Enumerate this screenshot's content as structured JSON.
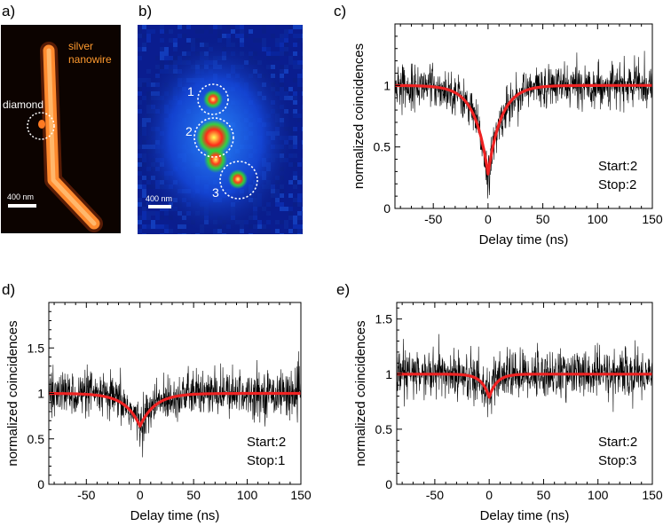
{
  "panel_labels": [
    "a)",
    "b)",
    "c)",
    "d)",
    "e)"
  ],
  "image_a": {
    "nanowire_label_line1": "silver",
    "nanowire_label_line2": "nanowire",
    "diamond_label": "diamond",
    "scale_bar_label": "400 nm"
  },
  "image_b": {
    "emitter_labels": [
      "1",
      "2",
      "3"
    ],
    "scale_bar_label": "400 nm"
  },
  "colors": {
    "trace": "#000000",
    "fit": "#ee2222",
    "nanowire": "#ff9933",
    "annotation_orange": "#ff9a2e"
  },
  "chart_data": [
    {
      "panel": "c)",
      "type": "line",
      "xlabel": "Delay time (ns)",
      "ylabel": "normalized coincidences",
      "xlim": [
        -85,
        150
      ],
      "ylim": [
        0,
        1.5
      ],
      "xticks": [
        -50,
        0,
        50,
        100,
        150
      ],
      "yticks": [
        0,
        0.5,
        1
      ],
      "ytick_labels": [
        "0",
        "0.5",
        "1"
      ],
      "series": [
        {
          "name": "coincidence data",
          "kind": "noisy-histogram",
          "baseline": 1.0,
          "dip_depth": 0.75,
          "dip_tau_ns": 12,
          "noise_amplitude": 0.15
        },
        {
          "name": "fit",
          "kind": "fit-curve",
          "baseline": 1.0,
          "dip_min": 0.28,
          "dip_tau_ns": 12
        }
      ],
      "annotation": [
        "Start:2",
        "Stop:2"
      ]
    },
    {
      "panel": "d)",
      "type": "line",
      "xlabel": "Delay time (ns)",
      "ylabel": "normalized coincidences",
      "xlim": [
        -85,
        150
      ],
      "ylim": [
        0,
        2.0
      ],
      "xticks": [
        -50,
        0,
        50,
        100,
        150
      ],
      "yticks": [
        0,
        0.5,
        1,
        1.5
      ],
      "ytick_labels": [
        "0",
        "0.5",
        "1",
        "1.5"
      ],
      "series": [
        {
          "name": "coincidence data",
          "kind": "noisy-histogram",
          "baseline": 1.0,
          "dip_depth": 0.36,
          "dip_tau_ns": 14,
          "noise_amplitude": 0.22
        },
        {
          "name": "fit",
          "kind": "fit-curve",
          "baseline": 1.0,
          "dip_min": 0.64,
          "dip_tau_ns": 14
        }
      ],
      "annotation": [
        "Start:2",
        "Stop:1"
      ]
    },
    {
      "panel": "e)",
      "type": "line",
      "xlabel": "Delay time (ns)",
      "ylabel": "normalized coincidences",
      "xlim": [
        -85,
        150
      ],
      "ylim": [
        0,
        1.65
      ],
      "xticks": [
        -50,
        0,
        50,
        100,
        150
      ],
      "yticks": [
        0,
        0.5,
        1,
        1.5
      ],
      "ytick_labels": [
        "0",
        "0.5",
        "1",
        "1.5"
      ],
      "series": [
        {
          "name": "coincidence data",
          "kind": "noisy-histogram",
          "baseline": 1.0,
          "dip_depth": 0.2,
          "dip_tau_ns": 7,
          "noise_amplitude": 0.2
        },
        {
          "name": "fit",
          "kind": "fit-curve",
          "baseline": 1.0,
          "dip_min": 0.79,
          "dip_tau_ns": 7
        }
      ],
      "annotation": [
        "Start:2",
        "Stop:3"
      ]
    }
  ]
}
